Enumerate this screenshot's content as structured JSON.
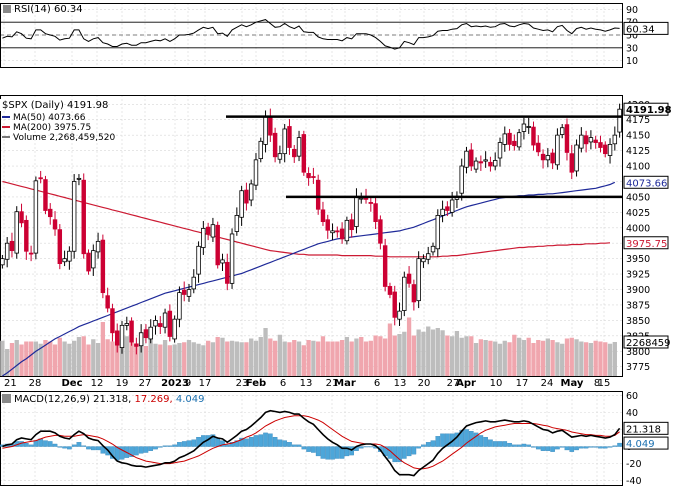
{
  "colors": {
    "background": "#ffffff",
    "grid": "#d7d7d7",
    "up_candle": "#ffffff",
    "down_candle": "#cc0033",
    "ma50": "#1f2a99",
    "ma200": "#cc1a33",
    "volume_up": "#bdbdbd",
    "volume_down": "#f0a6ae",
    "macd_line": "#000000",
    "signal_line": "#cc0000",
    "histogram": "#4da6d9",
    "rsi_line": "#000000"
  },
  "rsi_panel": {
    "legend": "RSI(14) 60.34",
    "current_label": "60.34",
    "ticks": [
      "90",
      "70",
      "50",
      "30",
      "10"
    ]
  },
  "price_panel": {
    "title": "$SPX (Daily) 4191.98",
    "legend": [
      "MA(50) 4073.66",
      "MA(200) 3975.75",
      "Volume 2,268,459,520"
    ],
    "price_ticks": [
      "4200",
      "4175",
      "4150",
      "4125",
      "4100",
      "4075",
      "4050",
      "4025",
      "4000",
      "3975",
      "3950",
      "3925",
      "3900",
      "3875",
      "3850",
      "3825",
      "3800",
      "3775"
    ],
    "last_price_label": "4191.98",
    "ma50_label": "4073.66",
    "ma200_label": "3975.75",
    "volume_label": "2268459"
  },
  "date_axis": {
    "labels": [
      "21",
      "28",
      "Dec",
      "12",
      "19",
      "27",
      "2023",
      "9",
      "17",
      "23",
      "Feb",
      "6",
      "13",
      "21",
      "Mar",
      "6",
      "13",
      "20",
      "27",
      "Apr",
      "10",
      "17",
      "24",
      "May",
      "8",
      "15"
    ]
  },
  "macd_panel": {
    "legend_parts": [
      "MACD(12,26,9)",
      "21.318",
      "17.269",
      "4.049"
    ],
    "ticks": [
      "60",
      "40",
      "20",
      "0",
      "-20",
      "-40"
    ],
    "macd_label": "21.318",
    "hist_label": "4.049"
  },
  "chart_data": {
    "type": "candlestick",
    "symbol": "$SPX",
    "interval": "Daily",
    "last_close": 4191.98,
    "price_ylim": [
      3760,
      4215
    ],
    "support_resistance_levels": [
      4180,
      4050
    ],
    "closes": [
      3950,
      3975,
      3963,
      4026,
      4008,
      3962,
      3958,
      4076,
      4080,
      4028,
      4018,
      3998,
      3942,
      3950,
      3962,
      4075,
      4080,
      3958,
      3930,
      3963,
      3978,
      3895,
      3870,
      3830,
      3810,
      3842,
      3845,
      3815,
      3808,
      3830,
      3822,
      3839,
      3850,
      3840,
      3862,
      3824,
      3852,
      3895,
      3892,
      3900,
      3920,
      3970,
      3999,
      3990,
      4005,
      3940,
      3948,
      3910,
      3990,
      4020,
      4060,
      4040,
      4071,
      4110,
      4140,
      4180,
      4150,
      4115,
      4120,
      4160,
      4130,
      4115,
      4146,
      4090,
      4081,
      4082,
      4030,
      4010,
      3996,
      3995,
      3994,
      3982,
      4012,
      3997,
      4050,
      4048,
      4046,
      4040,
      4010,
      3975,
      3905,
      3892,
      3855,
      3865,
      3920,
      3910,
      3880,
      3950,
      3950,
      3958,
      3970,
      4020,
      4030,
      4028,
      4045,
      4051,
      4100,
      4124,
      4100,
      4108,
      4105,
      4110,
      4100,
      4109,
      4138,
      4152,
      4135,
      4133,
      4154,
      4168,
      4164,
      4134,
      4123,
      4110,
      4117,
      4105,
      4150,
      4162,
      4122,
      4090,
      4134,
      4150,
      4136,
      4146,
      4138,
      4130,
      4120,
      4135,
      4150,
      4192
    ],
    "ma50": [
      3760,
      3765,
      3771,
      3777,
      3783,
      3788,
      3794,
      3800,
      3805,
      3810,
      3815,
      3820,
      3824,
      3828,
      3832,
      3836,
      3840,
      3843,
      3846,
      3849,
      3852,
      3855,
      3858,
      3861,
      3864,
      3867,
      3870,
      3873,
      3876,
      3879,
      3882,
      3885,
      3888,
      3891,
      3894,
      3896,
      3898,
      3900,
      3902,
      3904,
      3906,
      3908,
      3910,
      3912,
      3914,
      3916,
      3918,
      3920,
      3922,
      3924,
      3926,
      3929,
      3932,
      3935,
      3938,
      3941,
      3944,
      3947,
      3950,
      3953,
      3956,
      3959,
      3962,
      3965,
      3968,
      3971,
      3974,
      3976,
      3978,
      3980,
      3982,
      3983,
      3984,
      3985,
      3986,
      3987,
      3988,
      3989,
      3990,
      3991,
      3992,
      3993,
      3994,
      3995,
      3997,
      3999,
      4001,
      4004,
      4007,
      4010,
      4013,
      4016,
      4019,
      4022,
      4025,
      4028,
      4031,
      4034,
      4036,
      4038,
      4040,
      4042,
      4044,
      4046,
      4048,
      4049,
      4050,
      4051,
      4052,
      4052,
      4053,
      4053,
      4054,
      4054,
      4055,
      4055,
      4056,
      4057,
      4058,
      4059,
      4060,
      4061,
      4062,
      4063,
      4064,
      4066,
      4068,
      4070,
      4073.66
    ],
    "ma200": [
      4075,
      4073,
      4071,
      4069,
      4067,
      4065,
      4063,
      4061,
      4059,
      4057,
      4055,
      4053,
      4051,
      4049,
      4047,
      4045,
      4043,
      4041,
      4039,
      4037,
      4035,
      4033,
      4031,
      4029,
      4027,
      4025,
      4023,
      4021,
      4019,
      4017,
      4015,
      4013,
      4011,
      4009,
      4007,
      4005,
      4003,
      4001,
      3999,
      3997,
      3995,
      3993,
      3991,
      3989,
      3987,
      3985,
      3983,
      3981,
      3979,
      3977,
      3975,
      3973,
      3971,
      3969,
      3967,
      3965,
      3963,
      3962,
      3961,
      3960,
      3959,
      3958,
      3957,
      3957,
      3956,
      3956,
      3956,
      3956,
      3956,
      3956,
      3956,
      3955,
      3955,
      3955,
      3955,
      3955,
      3955,
      3955,
      3954,
      3954,
      3954,
      3953,
      3953,
      3953,
      3953,
      3953,
      3953,
      3953,
      3953,
      3953,
      3953,
      3953,
      3954,
      3954,
      3955,
      3955,
      3956,
      3957,
      3958,
      3959,
      3960,
      3961,
      3962,
      3963,
      3964,
      3965,
      3966,
      3967,
      3968,
      3968,
      3969,
      3969,
      3970,
      3970,
      3971,
      3971,
      3972,
      3972,
      3972,
      3973,
      3973,
      3973,
      3974,
      3974,
      3974,
      3975,
      3975,
      3975.75
    ],
    "volume_millions": [
      2350,
      1800,
      2200,
      2400,
      2100,
      2300,
      2300,
      2300,
      2150,
      2400,
      2300,
      2100,
      2550,
      2300,
      2150,
      2350,
      2600,
      2650,
      2100,
      2450,
      2200,
      3600,
      2450,
      2300,
      2900,
      2500,
      2650,
      2300,
      2150,
      2400,
      2000,
      2600,
      2150,
      2100,
      2400,
      2050,
      2100,
      2200,
      2250,
      2400,
      2250,
      2150,
      2050,
      2350,
      2250,
      2600,
      2550,
      2300,
      2350,
      2300,
      2250,
      2250,
      2500,
      2350,
      2600,
      3200,
      2500,
      2350,
      2750,
      2300,
      2250,
      2400,
      2300,
      2050,
      2400,
      2350,
      2300,
      2650,
      2300,
      2300,
      2300,
      2400,
      2600,
      2300,
      2500,
      2600,
      2300,
      2350,
      2700,
      2650,
      2500,
      3500,
      2700,
      2800,
      2950,
      3900,
      2700,
      3100,
      2950,
      3300,
      3100,
      3200,
      3050,
      2700,
      2650,
      3000,
      2550,
      2650,
      2650,
      2200,
      2450,
      2400,
      2350,
      2300,
      2150,
      2350,
      2250,
      2750,
      2550,
      2400,
      2550,
      2200,
      2400,
      2350,
      2500,
      2400,
      2250,
      2150,
      2500,
      2550,
      2450,
      2300,
      2250,
      2200,
      2350,
      2300,
      2250,
      2150,
      2268.46
    ],
    "rsi": [
      45,
      48,
      47,
      55,
      52,
      45,
      44,
      58,
      58,
      52,
      50,
      48,
      42,
      44,
      45,
      58,
      58,
      44,
      40,
      44,
      46,
      38,
      36,
      32,
      32,
      36,
      37,
      34,
      34,
      38,
      38,
      40,
      42,
      41,
      44,
      40,
      44,
      50,
      50,
      51,
      53,
      58,
      62,
      60,
      62,
      52,
      53,
      48,
      58,
      62,
      66,
      63,
      66,
      70,
      72,
      74,
      68,
      62,
      63,
      68,
      63,
      60,
      64,
      55,
      54,
      54,
      47,
      44,
      43,
      43,
      43,
      41,
      46,
      44,
      52,
      52,
      52,
      50,
      46,
      40,
      33,
      31,
      28,
      30,
      40,
      38,
      35,
      46,
      46,
      47,
      49,
      56,
      57,
      57,
      59,
      60,
      66,
      68,
      63,
      64,
      63,
      64,
      62,
      63,
      67,
      68,
      64,
      63,
      66,
      68,
      67,
      61,
      59,
      57,
      58,
      55,
      63,
      65,
      57,
      52,
      60,
      62,
      59,
      61,
      59,
      58,
      56,
      58,
      61,
      60.34
    ],
    "macd": [
      0,
      2,
      3,
      8,
      10,
      9,
      8,
      14,
      18,
      18,
      18,
      16,
      12,
      10,
      9,
      14,
      18,
      15,
      10,
      8,
      7,
      1,
      -4,
      -11,
      -17,
      -19,
      -20,
      -22,
      -23,
      -23,
      -24,
      -23,
      -22,
      -21,
      -19,
      -19,
      -17,
      -13,
      -11,
      -8,
      -5,
      0,
      5,
      8,
      12,
      10,
      9,
      5,
      9,
      13,
      18,
      20,
      24,
      29,
      34,
      40,
      42,
      41,
      40,
      41,
      40,
      38,
      38,
      33,
      29,
      26,
      20,
      14,
      9,
      5,
      2,
      -2,
      -2,
      -4,
      0,
      2,
      3,
      3,
      1,
      -4,
      -12,
      -19,
      -28,
      -33,
      -33,
      -33,
      -34,
      -28,
      -24,
      -20,
      -16,
      -8,
      -2,
      2,
      6,
      11,
      18,
      24,
      26,
      28,
      29,
      30,
      29,
      29,
      30,
      31,
      30,
      29,
      29,
      30,
      29,
      26,
      23,
      20,
      19,
      16,
      18,
      19,
      15,
      11,
      12,
      13,
      12,
      13,
      12,
      11,
      10,
      11,
      14,
      21.318
    ],
    "signal": [
      -2,
      -1,
      0,
      2,
      4,
      5,
      6,
      7,
      9,
      11,
      12,
      13,
      13,
      12,
      12,
      12,
      13,
      14,
      13,
      12,
      11,
      9,
      6,
      3,
      -1,
      -4,
      -7,
      -10,
      -13,
      -15,
      -17,
      -18,
      -19,
      -20,
      -20,
      -20,
      -19,
      -18,
      -17,
      -15,
      -13,
      -11,
      -8,
      -5,
      -2,
      0,
      2,
      3,
      4,
      6,
      8,
      11,
      13,
      16,
      20,
      24,
      27,
      30,
      32,
      34,
      35,
      36,
      36,
      36,
      35,
      33,
      31,
      28,
      24,
      20,
      16,
      12,
      9,
      6,
      5,
      4,
      3,
      3,
      3,
      2,
      -1,
      -5,
      -10,
      -15,
      -19,
      -22,
      -25,
      -26,
      -26,
      -25,
      -23,
      -20,
      -17,
      -13,
      -9,
      -5,
      -1,
      4,
      8,
      12,
      16,
      19,
      21,
      23,
      24,
      25,
      26,
      27,
      27,
      27,
      27,
      27,
      26,
      25,
      24,
      22,
      21,
      20,
      19,
      17,
      16,
      15,
      14,
      14,
      13,
      13,
      12,
      12,
      13,
      17.269
    ],
    "macd_ylim": [
      -45,
      65
    ]
  }
}
